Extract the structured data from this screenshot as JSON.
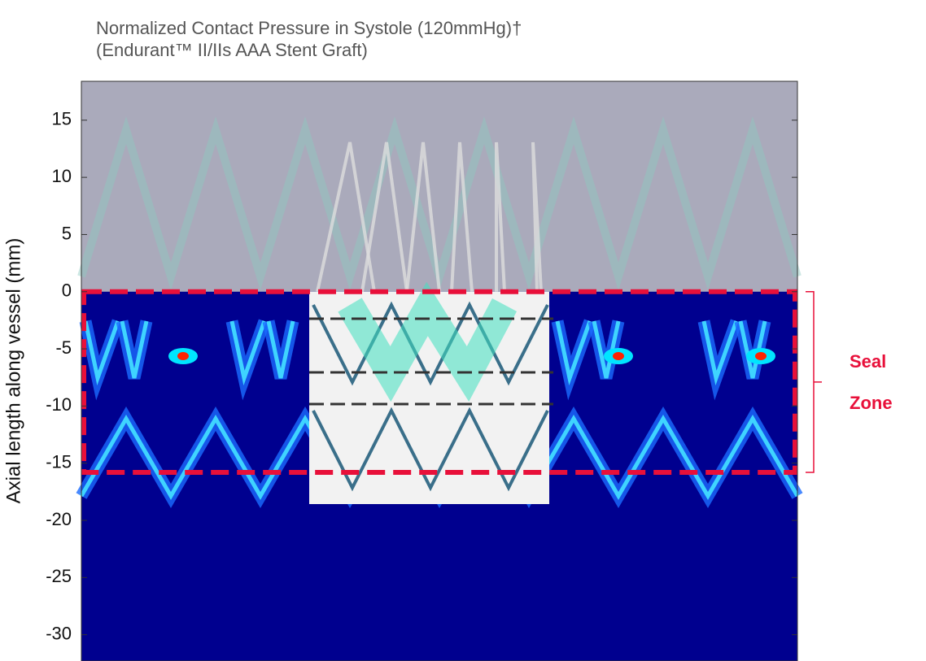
{
  "chart_data": {
    "type": "heatmap",
    "title": "Normalized Contact Pressure in Systole (120mmHg)†",
    "subtitle": "(Endurant™ II/IIs AAA Stent Graft)",
    "y_label": "Axial length along vessel (mm)",
    "ylim": [
      -32.3,
      18.4
    ],
    "yticks": [
      15,
      10,
      5,
      0,
      -5,
      -10,
      -15,
      -20,
      -25,
      -30
    ],
    "seal_zone": {
      "labels": [
        "Seal",
        "Zone"
      ],
      "range": [
        0,
        -15.8
      ],
      "color": "#e8103a"
    }
  }
}
